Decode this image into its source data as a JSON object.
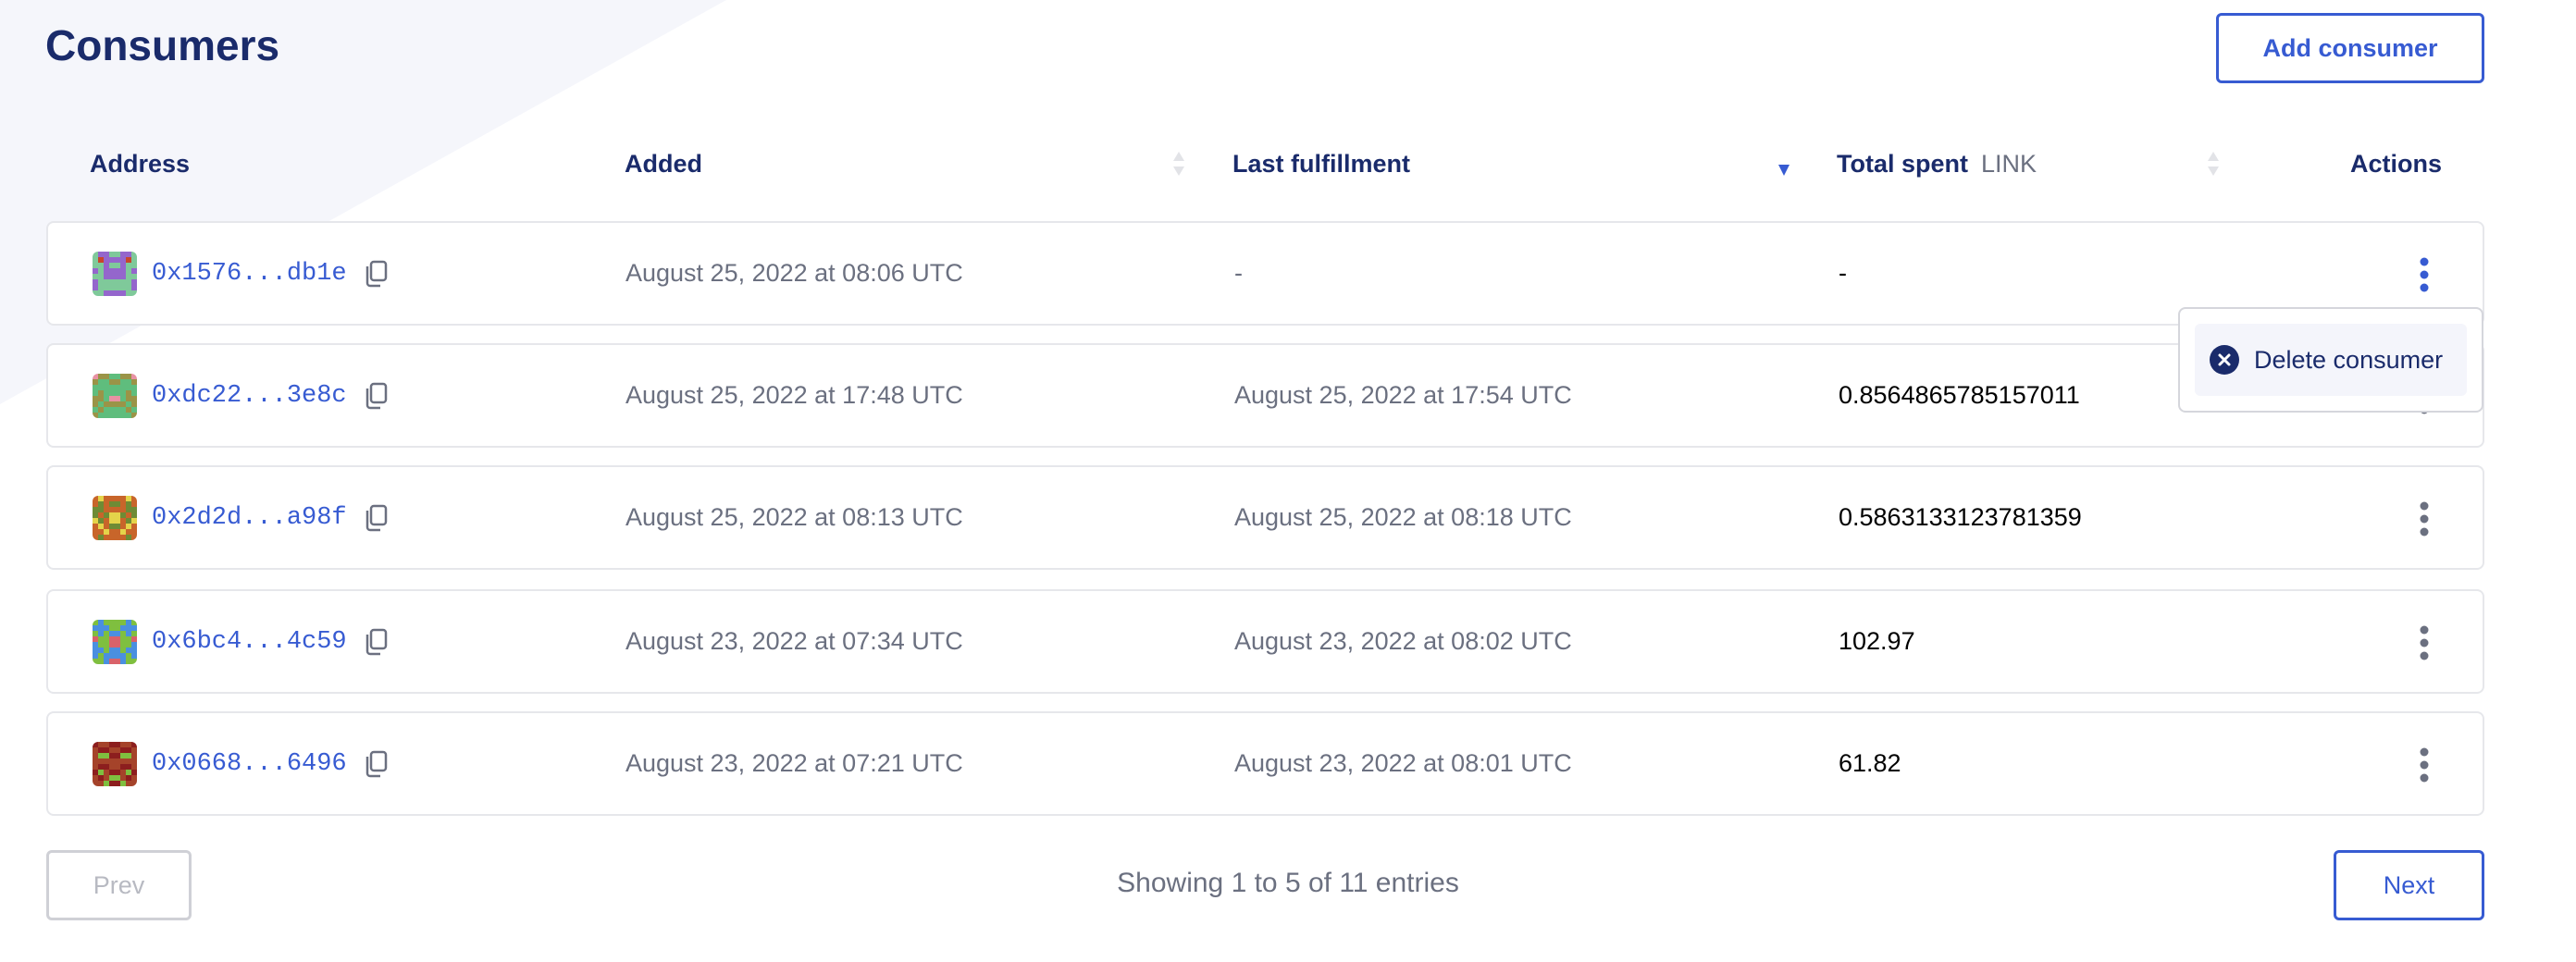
{
  "page": {
    "title": "Consumers",
    "add_button": "Add consumer"
  },
  "colors": {
    "accent": "#375bd2",
    "heading": "#1a2b6b",
    "muted": "#6b7080",
    "sort_active": "#375bd2",
    "sort_inactive": "#e2e3e7"
  },
  "table": {
    "headers": {
      "address": "Address",
      "added": "Added",
      "last_fulfillment": "Last fulfillment",
      "total_spent": "Total spent",
      "total_spent_unit": "LINK",
      "actions": "Actions"
    },
    "sort": {
      "added": "none",
      "last_fulfillment": "descending",
      "total_spent": "none"
    },
    "rows": [
      {
        "address": "0x1576...db1e",
        "added": "August 25, 2022 at 08:06 UTC",
        "last_fulfillment": "-",
        "total_spent": "-",
        "avatar_colors": [
          "#7fc99a",
          "#9466cc",
          "#c9452a"
        ],
        "menu_open": true
      },
      {
        "address": "0xdc22...3e8c",
        "added": "August 25, 2022 at 17:48 UTC",
        "last_fulfillment": "August 25, 2022 at 17:54 UTC",
        "total_spent": "0.8564865785157011",
        "avatar_colors": [
          "#5fbd7d",
          "#9a9447",
          "#e891a3"
        ]
      },
      {
        "address": "0x2d2d...a98f",
        "added": "August 25, 2022 at 08:13 UTC",
        "last_fulfillment": "August 25, 2022 at 08:18 UTC",
        "total_spent": "0.5863133123781359",
        "avatar_colors": [
          "#c8652a",
          "#6e8b35",
          "#e4d44a"
        ]
      },
      {
        "address": "0x6bc4...4c59",
        "added": "August 23, 2022 at 07:34 UTC",
        "last_fulfillment": "August 23, 2022 at 08:02 UTC",
        "total_spent": "102.97",
        "avatar_colors": [
          "#4a8fe0",
          "#7fbf3f",
          "#d9626a"
        ]
      },
      {
        "address": "0x0668...6496",
        "added": "August 23, 2022 at 07:21 UTC",
        "last_fulfillment": "August 23, 2022 at 08:01 UTC",
        "total_spent": "61.82",
        "avatar_colors": [
          "#a5432a",
          "#8c1e1e",
          "#7fbf3f"
        ]
      }
    ]
  },
  "row_menu": {
    "items": [
      {
        "label": "Delete consumer",
        "icon": "close-circle-icon"
      }
    ]
  },
  "pagination": {
    "prev": "Prev",
    "next": "Next",
    "summary": "Showing 1 to 5 of 11 entries",
    "prev_disabled": true
  }
}
